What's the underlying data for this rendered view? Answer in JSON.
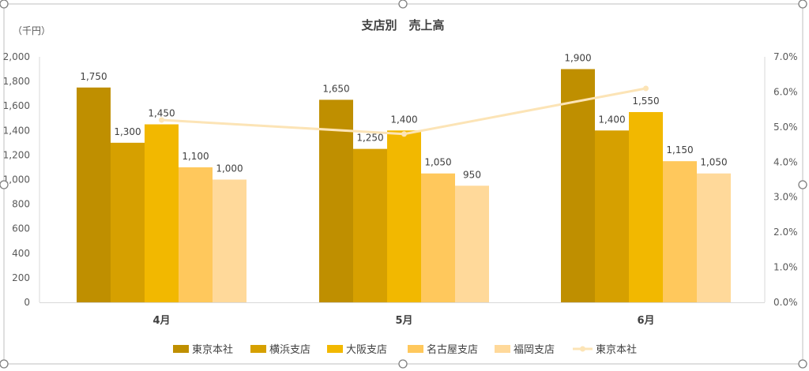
{
  "chart_data": {
    "type": "bar",
    "title": "支店別　売上高",
    "ylabel": "（千円）",
    "xlabel": "",
    "categories": [
      "4月",
      "5月",
      "6月"
    ],
    "ylim": [
      0,
      2000
    ],
    "yticks": [
      "0",
      "200",
      "400",
      "600",
      "800",
      "1,000",
      "1,200",
      "1,400",
      "1,600",
      "1,800",
      "2,000"
    ],
    "y2lim": [
      0,
      0.07
    ],
    "y2ticks": [
      "0.0%",
      "1.0%",
      "2.0%",
      "3.0%",
      "4.0%",
      "5.0%",
      "6.0%",
      "7.0%"
    ],
    "grid": false,
    "legend_position": "bottom",
    "series": [
      {
        "name": "東京本社",
        "type": "bar",
        "color": "#BF8F00",
        "values": [
          1750,
          1650,
          1900
        ],
        "labels": [
          "1,750",
          "1,650",
          "1,900"
        ]
      },
      {
        "name": "横浜支店",
        "type": "bar",
        "color": "#D6A000",
        "values": [
          1300,
          1250,
          1400
        ],
        "labels": [
          "1,300",
          "1,250",
          "1,400"
        ]
      },
      {
        "name": "大阪支店",
        "type": "bar",
        "color": "#F2B800",
        "values": [
          1450,
          1400,
          1550
        ],
        "labels": [
          "1,450",
          "1,400",
          "1,550"
        ]
      },
      {
        "name": "名古屋支店",
        "type": "bar",
        "color": "#FFC85C",
        "values": [
          1100,
          1050,
          1150
        ],
        "labels": [
          "1,100",
          "1,050",
          "1,150"
        ]
      },
      {
        "name": "福岡支店",
        "type": "bar",
        "color": "#FFD99A",
        "values": [
          1000,
          950,
          1050
        ],
        "labels": [
          "1,000",
          "950",
          "1,050"
        ]
      },
      {
        "name": "東京本社",
        "type": "line",
        "axis": "secondary",
        "color": "#FCE4B6",
        "values": [
          0.052,
          0.048,
          0.061
        ]
      }
    ]
  }
}
